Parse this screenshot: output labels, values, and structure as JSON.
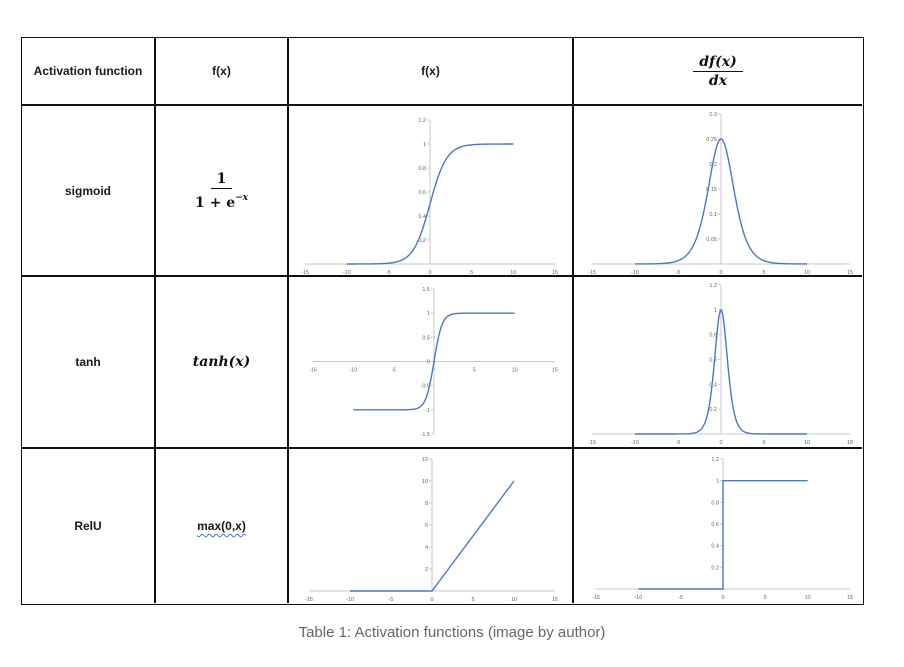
{
  "table": {
    "headers": {
      "activation": "Activation function",
      "formula": "f(x)",
      "plot": "f(x)",
      "deriv_num": "df(x)",
      "deriv_den": "dx"
    },
    "rows": [
      {
        "name": "sigmoid",
        "formula_num": "1",
        "formula_den": "1 + e",
        "formula_den_sup": "−x"
      },
      {
        "name": "tanh",
        "formula": "tanh(x)"
      },
      {
        "name": "RelU",
        "formula": "max(0,x)"
      }
    ]
  },
  "caption": "Table 1: Activation functions (image by author)",
  "line_color": "#4a78c2",
  "chart_data": [
    {
      "id": "sigmoid-f",
      "type": "line",
      "fn": "sigmoid",
      "x_range": [
        -10,
        10
      ],
      "xlim": [
        -15,
        15
      ],
      "ylim": [
        0,
        1.2
      ],
      "xticks": [
        -15,
        -10,
        -5,
        0,
        5,
        10,
        15
      ],
      "xtick_labels": [
        "-15",
        "-10",
        "-5",
        "0",
        "5",
        "10",
        "15"
      ],
      "yticks": [
        0.2,
        0.4,
        0.6,
        0.8,
        1,
        1.2
      ],
      "ytick_labels": [
        "0.2",
        "0.4",
        "0.6",
        "0.8",
        "1",
        "1.2"
      ]
    },
    {
      "id": "sigmoid-df",
      "type": "line",
      "fn": "dsigmoid",
      "x_range": [
        -10,
        10
      ],
      "xlim": [
        -15,
        15
      ],
      "ylim": [
        0,
        0.3
      ],
      "xticks": [
        -15,
        -10,
        -5,
        0,
        5,
        10,
        15
      ],
      "xtick_labels": [
        "-15",
        "-10",
        "-5",
        "0",
        "5",
        "10",
        "15"
      ],
      "yticks": [
        0.05,
        0.1,
        0.15,
        0.2,
        0.25,
        0.3
      ],
      "ytick_labels": [
        "0.05",
        "0.1",
        "0.15",
        "0.2",
        "0.25",
        "0.3"
      ]
    },
    {
      "id": "tanh-f",
      "type": "line",
      "fn": "tanh",
      "x_range": [
        -10,
        10
      ],
      "xlim": [
        -15,
        15
      ],
      "ylim": [
        -1.5,
        1.5
      ],
      "xticks": [
        -15,
        -10,
        -5,
        5,
        10,
        15
      ],
      "xtick_labels": [
        "-15",
        "-10",
        "-5",
        "5",
        "10",
        "15"
      ],
      "yticks": [
        -1.5,
        -1,
        -0.5,
        0,
        0.5,
        1,
        1.5
      ],
      "ytick_labels": [
        "-1.5",
        "-1",
        "-0.5",
        "0",
        "0.5",
        "1",
        "1.5"
      ]
    },
    {
      "id": "tanh-df",
      "type": "line",
      "fn": "dtanh",
      "x_range": [
        -10,
        10
      ],
      "xlim": [
        -15,
        15
      ],
      "ylim": [
        0,
        1.2
      ],
      "xticks": [
        -15,
        -10,
        -5,
        0,
        5,
        10,
        15
      ],
      "xtick_labels": [
        "-15",
        "-10",
        "-5",
        "0",
        "5",
        "10",
        "15"
      ],
      "yticks": [
        0.2,
        0.4,
        0.6,
        0.8,
        1,
        1.2
      ],
      "ytick_labels": [
        "0.2",
        "0.4",
        "0.6",
        "0.8",
        "1",
        "1.2"
      ]
    },
    {
      "id": "relu-f",
      "type": "line",
      "fn": "relu",
      "x_range": [
        -10,
        10
      ],
      "xlim": [
        -15,
        15
      ],
      "ylim": [
        0,
        12
      ],
      "xticks": [
        -15,
        -10,
        -5,
        0,
        5,
        10,
        15
      ],
      "xtick_labels": [
        "-15",
        "-10",
        "-5",
        "0",
        "5",
        "10",
        "15"
      ],
      "yticks": [
        2,
        4,
        6,
        8,
        10,
        12
      ],
      "ytick_labels": [
        "2",
        "4",
        "6",
        "8",
        "10",
        "12"
      ]
    },
    {
      "id": "relu-df",
      "type": "line",
      "fn": "drelu",
      "x_range": [
        -10,
        10
      ],
      "xlim": [
        -15,
        15
      ],
      "ylim": [
        0,
        1.2
      ],
      "xticks": [
        -15,
        -10,
        -5,
        0,
        5,
        10,
        15
      ],
      "xtick_labels": [
        "-15",
        "-10",
        "-5",
        "0",
        "5",
        "10",
        "15"
      ],
      "yticks": [
        0.2,
        0.4,
        0.6,
        0.8,
        1,
        1.2
      ],
      "ytick_labels": [
        "0.2",
        "0.4",
        "0.6",
        "0.8",
        "1",
        "1.2"
      ]
    }
  ]
}
